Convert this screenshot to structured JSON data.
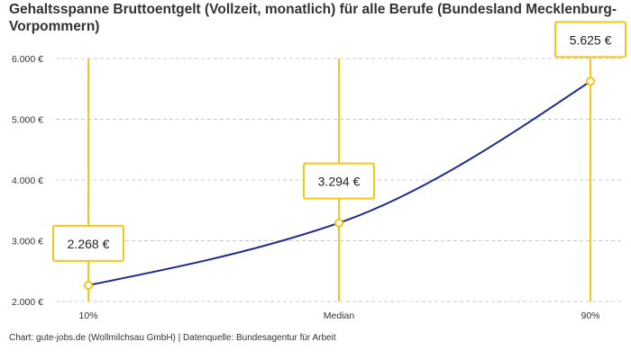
{
  "chart_data": {
    "type": "line",
    "title": "Gehaltsspanne Bruttoentgelt (Vollzeit, monatlich) für alle Berufe (Bundesland Mecklenburg-Vorpommern)",
    "categories": [
      "10%",
      "Median",
      "90%"
    ],
    "values": [
      2268,
      3294,
      5625
    ],
    "data_labels": [
      "2.268 €",
      "3.294 €",
      "5.625 €"
    ],
    "ylim": [
      2000,
      6000
    ],
    "yticks": [
      2000,
      3000,
      4000,
      5000,
      6000
    ],
    "ytick_labels": [
      "2.000 €",
      "3.000 €",
      "4.000 €",
      "5.000 €",
      "6.000 €"
    ],
    "grid": true,
    "colors": {
      "line": "#1a2a8c",
      "accent": "#f5c518",
      "grid": "#cccccc"
    }
  },
  "footer": "Chart: gute-jobs.de (Wollmilchsau GmbH) | Datenquelle: Bundesagentur für Arbeit"
}
